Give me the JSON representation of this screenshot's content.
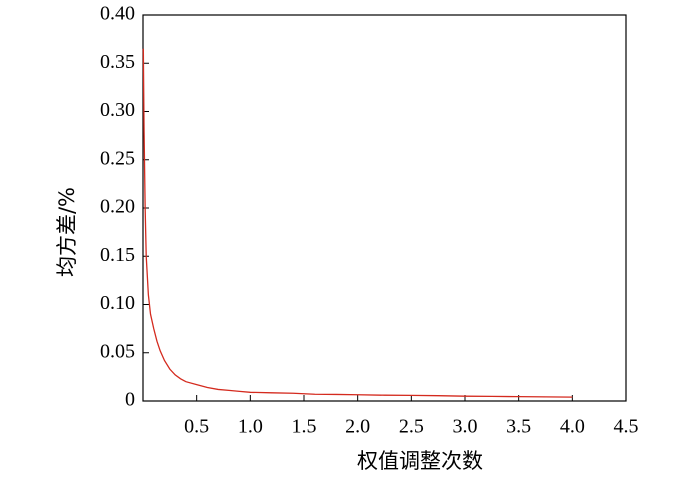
{
  "chart_data": {
    "type": "line",
    "x_label": "权值调整次数",
    "y_label": "均方差/%",
    "x": [
      0.003,
      0.01,
      0.02,
      0.03,
      0.05,
      0.07,
      0.1,
      0.13,
      0.16,
      0.2,
      0.25,
      0.3,
      0.35,
      0.4,
      0.5,
      0.6,
      0.7,
      0.8,
      0.9,
      1.0,
      1.2,
      1.4,
      1.6,
      1.8,
      2.0,
      2.25,
      2.5,
      2.75,
      3.0,
      3.25,
      3.5,
      3.75,
      4.0
    ],
    "series": [
      {
        "color": "#d42a1e",
        "values": [
          0.365,
          0.28,
          0.2,
          0.15,
          0.11,
          0.09,
          0.075,
          0.062,
          0.052,
          0.042,
          0.033,
          0.027,
          0.023,
          0.02,
          0.017,
          0.014,
          0.012,
          0.011,
          0.01,
          0.009,
          0.0085,
          0.008,
          0.007,
          0.0068,
          0.0065,
          0.006,
          0.0058,
          0.0055,
          0.005,
          0.0048,
          0.0045,
          0.0043,
          0.004
        ]
      }
    ],
    "xlim": [
      0,
      4.5
    ],
    "xticks": [
      0.5,
      {
        "value": 1,
        "label": "1.0"
      },
      1.5,
      {
        "value": 2,
        "label": "2.0"
      },
      2.5,
      {
        "value": 3,
        "label": "3.0"
      },
      3.5,
      {
        "value": 4,
        "label": "4.0"
      },
      4.5
    ],
    "ylim": [
      0,
      0.4
    ],
    "yticks": [
      0,
      0.05,
      {
        "value": 0.1,
        "label": "0.10"
      },
      0.15,
      {
        "value": 0.2,
        "label": "0.20"
      },
      0.25,
      {
        "value": 0.3,
        "label": "0.30"
      },
      0.35,
      {
        "value": 0.4,
        "label": "0.40"
      }
    ],
    "grid": false
  }
}
